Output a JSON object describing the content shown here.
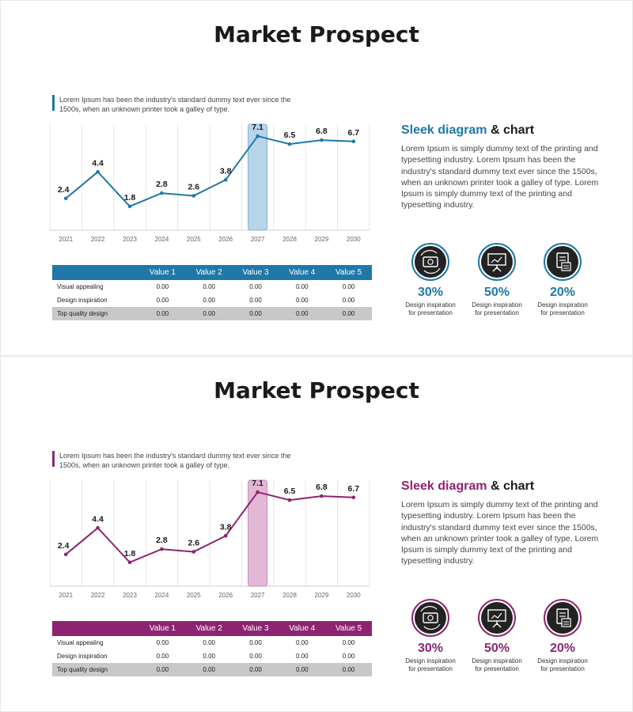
{
  "slides": [
    {
      "title": "Market Prospect",
      "accent": "#1f78a8",
      "band_fill": "#b7d5e8",
      "band_stroke": "#7fb2d4",
      "intro": "Lorem Ipsum has been the industry's standard dummy text ever since the 1500s, when an unknown printer took a galley of type.",
      "heading_accent": "Sleek diagram",
      "heading_rest": "& chart",
      "body": "Lorem Ipsum is simply dummy text of the printing and typesetting industry. Lorem Ipsum has been the industry's standard dummy text ever since the 1500s, when an unknown printer took a galley of type. Lorem Ipsum is simply dummy text of the printing and typesetting industry.",
      "table": {
        "headers": [
          "",
          "Value 1",
          "Value 2",
          "Value 3",
          "Value 4",
          "Value 5"
        ],
        "rows": [
          {
            "label": "Visual appealing",
            "values": [
              "0.00",
              "0.00",
              "0.00",
              "0.00",
              "0.00"
            ]
          },
          {
            "label": "Design inspiration",
            "values": [
              "0.00",
              "0.00",
              "0.00",
              "0.00",
              "0.00"
            ]
          },
          {
            "label": "Top quality design",
            "values": [
              "0.00",
              "0.00",
              "0.00",
              "0.00",
              "0.00"
            ]
          }
        ]
      },
      "stats": [
        {
          "icon": "money-cycle-icon",
          "percent": "30%",
          "caption_1": "Design inspiration",
          "caption_2": "for presentation"
        },
        {
          "icon": "presentation-board-icon",
          "percent": "50%",
          "caption_1": "Design inspiration",
          "caption_2": "for presentation"
        },
        {
          "icon": "document-report-icon",
          "percent": "20%",
          "caption_1": "Design inspiration",
          "caption_2": "for presentation"
        }
      ]
    },
    {
      "title": "Market Prospect",
      "accent": "#8e2471",
      "band_fill": "#e2b8d6",
      "band_stroke": "#c788b6",
      "intro": "Lorem Ipsum has been the industry's standard dummy text ever since the 1500s, when an unknown printer took a galley of type.",
      "heading_accent": "Sleek diagram",
      "heading_rest": "& chart",
      "body": "Lorem Ipsum is simply dummy text of the printing and typesetting industry. Lorem Ipsum has been the industry's standard dummy text ever since the 1500s, when an unknown printer took a galley of type. Lorem Ipsum is simply dummy text of the printing and typesetting industry.",
      "table": {
        "headers": [
          "",
          "Value 1",
          "Value 2",
          "Value 3",
          "Value 4",
          "Value 5"
        ],
        "rows": [
          {
            "label": "Visual appealing",
            "values": [
              "0.00",
              "0.00",
              "0.00",
              "0.00",
              "0.00"
            ]
          },
          {
            "label": "Design inspiration",
            "values": [
              "0.00",
              "0.00",
              "0.00",
              "0.00",
              "0.00"
            ]
          },
          {
            "label": "Top quality design",
            "values": [
              "0.00",
              "0.00",
              "0.00",
              "0.00",
              "0.00"
            ]
          }
        ]
      },
      "stats": [
        {
          "icon": "money-cycle-icon",
          "percent": "30%",
          "caption_1": "Design inspiration",
          "caption_2": "for presentation"
        },
        {
          "icon": "presentation-board-icon",
          "percent": "50%",
          "caption_1": "Design inspiration",
          "caption_2": "for presentation"
        },
        {
          "icon": "document-report-icon",
          "percent": "20%",
          "caption_1": "Design inspiration",
          "caption_2": "for presentation"
        }
      ]
    }
  ],
  "chart_data": [
    {
      "type": "line",
      "x": [
        "2021",
        "2022",
        "2023",
        "2024",
        "2025",
        "2026",
        "2027",
        "2028",
        "2029",
        "2030"
      ],
      "values": [
        2.4,
        4.4,
        1.8,
        2.8,
        2.6,
        3.8,
        7.1,
        6.5,
        6.8,
        6.7
      ],
      "highlight_category": "2027",
      "color": "#1f78a8",
      "ylim": [
        0,
        8
      ],
      "grid": "vertical"
    },
    {
      "type": "line",
      "x": [
        "2021",
        "2022",
        "2023",
        "2024",
        "2025",
        "2026",
        "2027",
        "2028",
        "2029",
        "2030"
      ],
      "values": [
        2.4,
        4.4,
        1.8,
        2.8,
        2.6,
        3.8,
        7.1,
        6.5,
        6.8,
        6.7
      ],
      "highlight_category": "2027",
      "color": "#8e2471",
      "ylim": [
        0,
        8
      ],
      "grid": "vertical"
    }
  ]
}
